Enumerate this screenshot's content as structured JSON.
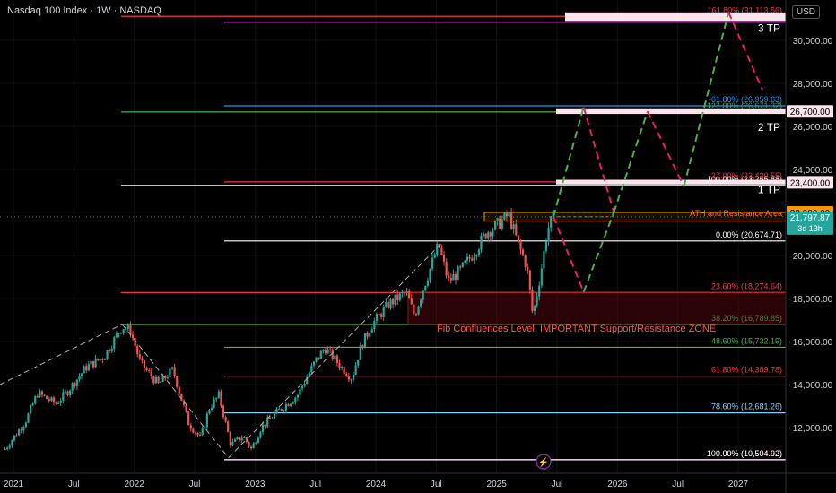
{
  "header": {
    "title": "Nasdaq 100 Index · 1W · NASDAQ",
    "currency": "USD"
  },
  "chart_data": {
    "type": "candlestick",
    "symbol": "Nasdaq 100 Index",
    "timeframe": "1W",
    "exchange": "NASDAQ",
    "ylim": [
      10400,
      31400
    ],
    "y_ticks": [
      12000,
      14000,
      16000,
      18000,
      20000,
      22000,
      24000,
      26000,
      28000,
      30000
    ],
    "y_tick_labels": [
      "12,000.00",
      "14,000.00",
      "16,000.00",
      "18,000.00",
      "20,000.00",
      "22,000.00",
      "24,000.00",
      "26,000.00",
      "28,000.00",
      "30,000.00"
    ],
    "x_ticks": [
      2021.0,
      2021.5,
      2022.0,
      2022.5,
      2023.0,
      2023.5,
      2024.0,
      2024.5,
      2025.0,
      2025.5,
      2026.0,
      2026.5,
      2027.0
    ],
    "x_tick_labels": [
      "2021",
      "Jul",
      "2022",
      "Jul",
      "2023",
      "Jul",
      "2024",
      "Jul",
      "2025",
      "Jul",
      "2026",
      "Jul",
      "2027"
    ],
    "price_anchors": [
      [
        2020.93,
        11000
      ],
      [
        2021.1,
        12300
      ],
      [
        2021.2,
        13600
      ],
      [
        2021.35,
        13100
      ],
      [
        2021.45,
        13700
      ],
      [
        2021.6,
        14800
      ],
      [
        2021.75,
        15300
      ],
      [
        2021.9,
        16700
      ],
      [
        2021.97,
        16500
      ],
      [
        2022.05,
        15000
      ],
      [
        2022.2,
        14000
      ],
      [
        2022.32,
        14700
      ],
      [
        2022.45,
        12200
      ],
      [
        2022.55,
        11500
      ],
      [
        2022.62,
        12900
      ],
      [
        2022.7,
        13500
      ],
      [
        2022.8,
        11200
      ],
      [
        2022.9,
        11600
      ],
      [
        2022.97,
        11000
      ],
      [
        2023.05,
        12000
      ],
      [
        2023.2,
        12800
      ],
      [
        2023.35,
        13500
      ],
      [
        2023.5,
        15100
      ],
      [
        2023.58,
        15700
      ],
      [
        2023.7,
        14900
      ],
      [
        2023.8,
        14300
      ],
      [
        2023.88,
        15800
      ],
      [
        2023.97,
        16800
      ],
      [
        2024.1,
        17700
      ],
      [
        2024.25,
        18300
      ],
      [
        2024.32,
        17200
      ],
      [
        2024.4,
        18600
      ],
      [
        2024.52,
        20500
      ],
      [
        2024.6,
        18800
      ],
      [
        2024.7,
        19300
      ],
      [
        2024.82,
        20200
      ],
      [
        2024.92,
        21100
      ],
      [
        2025.0,
        21400
      ],
      [
        2025.1,
        21900
      ],
      [
        2025.18,
        20500
      ],
      [
        2025.25,
        19500
      ],
      [
        2025.3,
        17200
      ],
      [
        2025.34,
        18400
      ],
      [
        2025.38,
        19700
      ],
      [
        2025.42,
        21200
      ],
      [
        2025.47,
        21800
      ]
    ],
    "last_price": "21,797.87",
    "countdown": "3d 13h",
    "fib_levels": [
      {
        "label": "0.00% (10,504.92)",
        "value": 10504.92,
        "color": "#d34fd3"
      },
      {
        "label": "100.00% (10,504.92)",
        "value": 10504.92,
        "color": "#ffffff"
      },
      {
        "label": "78.60% (12,681.26)",
        "value": 12681.26,
        "color": "#90caf9"
      },
      {
        "label": "61.80% (14,389.78)",
        "value": 14389.78,
        "color": "#f23645"
      },
      {
        "label": "48.60% (15,732.19)",
        "value": 15732.19,
        "color": "#4caf50"
      },
      {
        "label": "38.20% (16,789.85)",
        "value": 16789.85,
        "color": "#4caf50"
      },
      {
        "label": "23.60% (18,274.64)",
        "value": 18274.64,
        "color": "#f23645"
      },
      {
        "label": "0.00% (20,674.71)",
        "value": 20674.71,
        "color": "#ffffff"
      },
      {
        "label": "100.00% (23,255.88)",
        "value": 23255.88,
        "color": "#ffffff"
      },
      {
        "label": "-27.00% (23,420.55)",
        "value": 23420.55,
        "color": "#f23645"
      },
      {
        "label": "127.00% (26,671.32)",
        "value": 26671.32,
        "color": "#4caf50"
      },
      {
        "label": "-61.80% (26,959.63)",
        "value": 26959.63,
        "color": "#2196f3"
      },
      {
        "label": "-100.00% (30,844.49)",
        "value": 30844.49,
        "color": "#d34fd3"
      },
      {
        "label": "161.80% (31,113.56)",
        "value": 31113.56,
        "color": "#f23645"
      }
    ],
    "price_labels": [
      {
        "text": "26,700.00",
        "value": 26700,
        "bg": "#fce4ec",
        "fg": "#000000"
      },
      {
        "text": "23,400.00",
        "value": 23400,
        "bg": "#fce4ec",
        "fg": "#000000"
      },
      {
        "text": "22,000.00",
        "value": 22000,
        "bg": "#ff9800",
        "fg": "#000000"
      }
    ],
    "annotations": {
      "tp1": "1 TP",
      "tp2": "2 TP",
      "tp3": "3 TP",
      "ath_zone": "ATH and Resistance Area",
      "fib_zone": "Fib Confluences Level, IMPORTANT  Support/Resistance ZONE"
    },
    "projection_path": [
      [
        2025.47,
        21800
      ],
      [
        2025.72,
        26900
      ],
      [
        2025.97,
        22000
      ],
      [
        2026.25,
        26700
      ],
      [
        2026.55,
        23200
      ],
      [
        2026.92,
        31300
      ],
      [
        2027.2,
        27700
      ]
    ],
    "alt_path": [
      [
        2025.47,
        21800
      ],
      [
        2025.72,
        18300
      ],
      [
        2025.97,
        22000
      ]
    ],
    "green_dash_box_low": 21800,
    "colors": {
      "bull": "#26a69a",
      "bear": "#ef5350",
      "up_projection": "#4caf50",
      "down_projection": "#e91e63"
    }
  }
}
